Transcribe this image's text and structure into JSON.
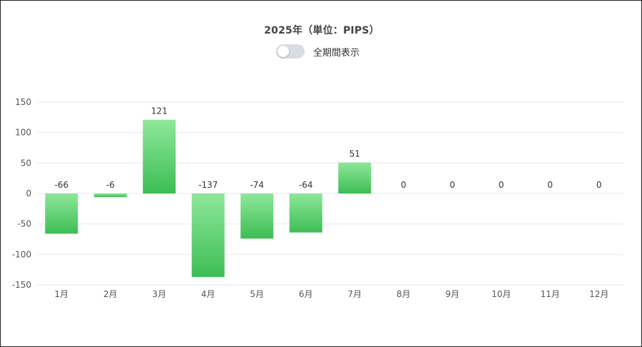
{
  "chart_data": {
    "type": "bar",
    "title": "2025年（単位：PIPS）",
    "categories": [
      "1月",
      "2月",
      "3月",
      "4月",
      "5月",
      "6月",
      "7月",
      "8月",
      "9月",
      "10月",
      "11月",
      "12月"
    ],
    "values": [
      -66,
      -6,
      121,
      -137,
      -74,
      -64,
      51,
      0,
      0,
      0,
      0,
      0
    ],
    "ylim": [
      -150,
      150
    ],
    "yticks": [
      150,
      100,
      50,
      0,
      -50,
      -100,
      -150
    ],
    "grid": true,
    "bar_color_top": "#8ee79a",
    "bar_color_bottom": "#3dbe54",
    "grid_color": "#e6e9f2"
  },
  "controls": {
    "toggle_label": "全期間表示",
    "toggle_on": false
  }
}
